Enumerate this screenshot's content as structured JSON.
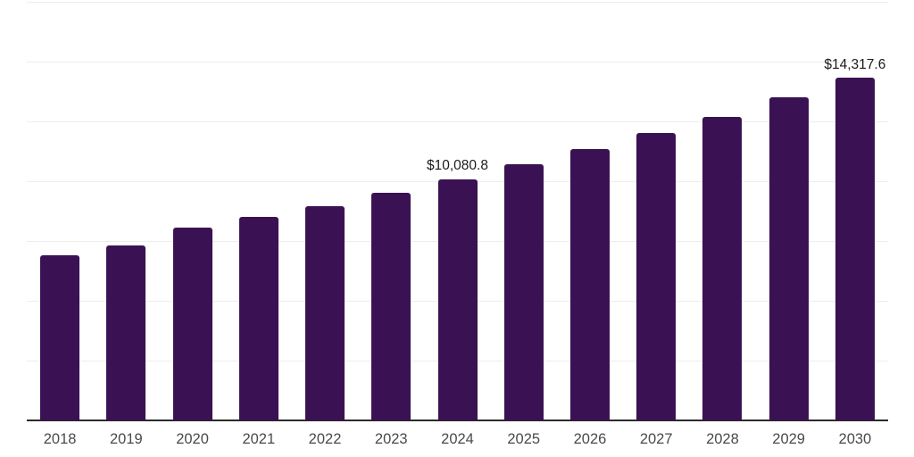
{
  "chart_data": {
    "type": "bar",
    "title": "",
    "xlabel": "",
    "ylabel": "",
    "categories": [
      "2018",
      "2019",
      "2020",
      "2021",
      "2022",
      "2023",
      "2024",
      "2025",
      "2026",
      "2027",
      "2028",
      "2029",
      "2030"
    ],
    "values": [
      6900,
      7300,
      8050,
      8500,
      8950,
      9520,
      10080.8,
      10700,
      11350,
      12000,
      12700,
      13500,
      14317.6
    ],
    "value_labels": {
      "2024": "$10,080.8",
      "2030": "$14,317.6"
    },
    "ylim": [
      0,
      17500
    ],
    "gridline_step": 2500,
    "grid": "horizontal-only",
    "legend": "none",
    "bar_color": "#3A1253"
  },
  "colors": {
    "background": "#ffffff",
    "bar": "#3A1253",
    "gridline": "#ededed",
    "axis_line": "#2b2b2b",
    "tick_label": "#4a4a4a",
    "value_label": "#1b1b1b"
  }
}
